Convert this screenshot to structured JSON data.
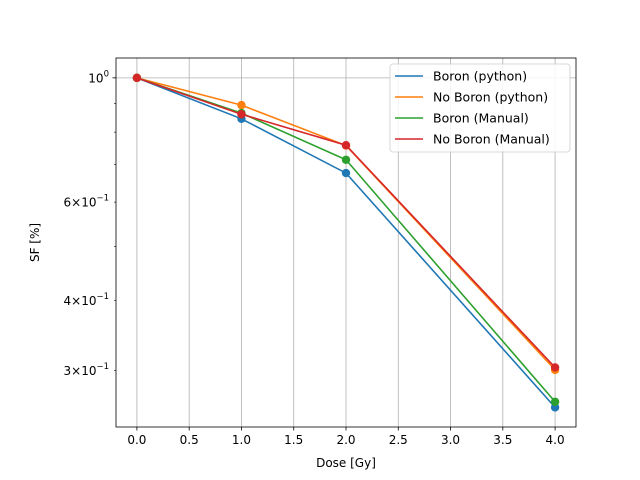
{
  "chart_data": {
    "type": "line",
    "title": "",
    "xlabel": "Dose [Gy]",
    "ylabel": "SF [%]",
    "xlim": [
      -0.2,
      4.2
    ],
    "ylim": [
      0.238,
      1.085
    ],
    "yscale": "log",
    "grid": "x-major",
    "legend_position": "top-right",
    "x_ticks": [
      0.0,
      0.5,
      1.0,
      1.5,
      2.0,
      2.5,
      3.0,
      3.5,
      4.0
    ],
    "x_tick_labels": [
      "0.0",
      "0.5",
      "1.0",
      "1.5",
      "2.0",
      "2.5",
      "3.0",
      "3.5",
      "4.0"
    ],
    "y_major_ticks": [
      1.0
    ],
    "y_major_tick_labels": [
      "10^0"
    ],
    "y_minor_ticks": [
      0.3,
      0.4,
      0.5,
      0.6,
      0.7,
      0.8,
      0.9
    ],
    "y_minor_tick_labels": [
      "3×10^−1",
      "4×10^−1",
      "",
      "6×10^−1",
      "",
      "",
      ""
    ],
    "x": [
      0,
      1,
      2,
      4
    ],
    "series": [
      {
        "name": "Boron (python)",
        "color": "#1f77b4",
        "values": [
          1.0,
          0.845,
          0.676,
          0.258
        ]
      },
      {
        "name": "No Boron (python)",
        "color": "#ff7f0e",
        "values": [
          1.0,
          0.894,
          0.757,
          0.301
        ]
      },
      {
        "name": "Boron (Manual)",
        "color": "#2ca02c",
        "values": [
          1.0,
          0.865,
          0.714,
          0.264
        ]
      },
      {
        "name": "No Boron (Manual)",
        "color": "#d62728",
        "values": [
          1.0,
          0.861,
          0.758,
          0.304
        ]
      }
    ]
  }
}
